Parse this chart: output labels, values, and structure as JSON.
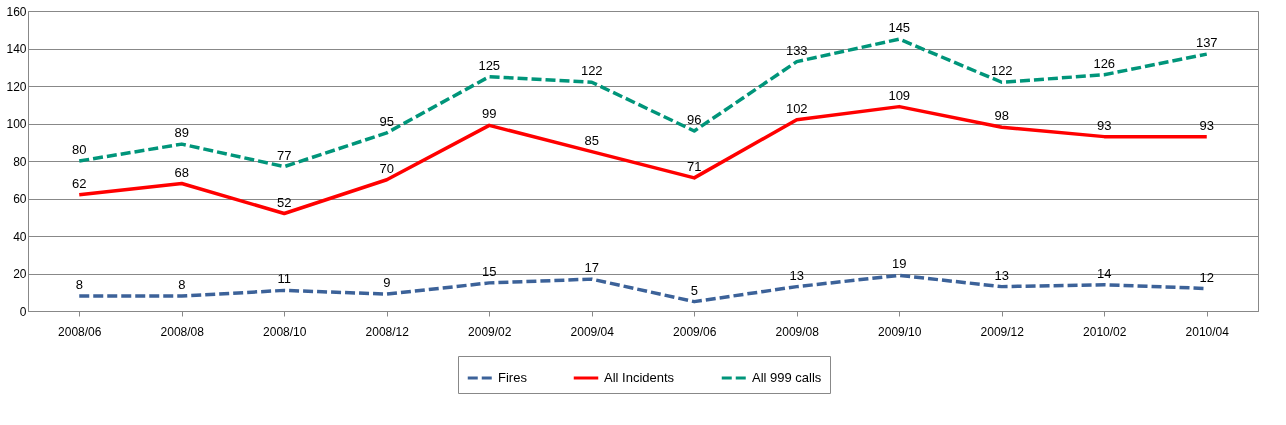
{
  "chart_data": {
    "type": "line",
    "categories": [
      "2008/06",
      "2008/08",
      "2008/10",
      "2008/12",
      "2009/02",
      "2009/04",
      "2009/06",
      "2009/08",
      "2009/10",
      "2009/12",
      "2010/02",
      "2010/04"
    ],
    "series": [
      {
        "name": "Fires",
        "color": "#3c6299",
        "line_style": "dashed",
        "values": [
          8,
          8,
          11,
          9,
          15,
          17,
          5,
          13,
          19,
          13,
          14,
          12
        ]
      },
      {
        "name": "All Incidents",
        "color": "#ff0000",
        "line_style": "solid",
        "values": [
          62,
          68,
          52,
          70,
          99,
          85,
          71,
          102,
          109,
          98,
          93,
          93
        ]
      },
      {
        "name": "All 999 calls",
        "color": "#00957a",
        "line_style": "dashed",
        "values": [
          80,
          89,
          77,
          95,
          125,
          122,
          96,
          133,
          145,
          122,
          126,
          137
        ]
      }
    ],
    "ylim": [
      0,
      160
    ],
    "yticks": [
      0,
      20,
      40,
      60,
      80,
      100,
      120,
      140,
      160
    ],
    "grid": "y",
    "legend": "bottom",
    "data_labels": true
  }
}
